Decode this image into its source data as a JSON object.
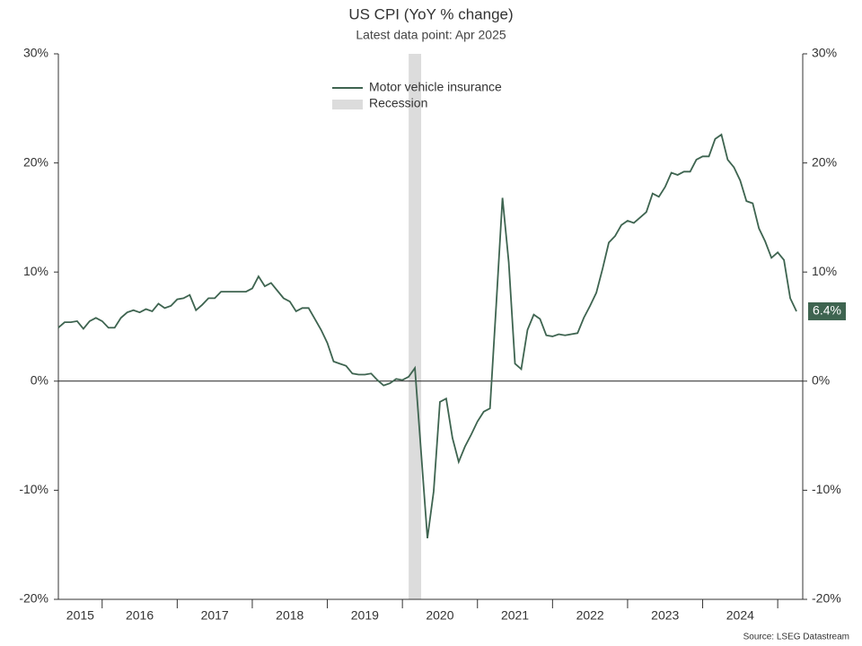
{
  "chart_data": {
    "type": "line",
    "title": "US CPI (YoY % change)",
    "subtitle": "Latest data point: Apr 2025",
    "source": "Source: LSEG Datastream",
    "x": [
      "2015-06",
      "2015-07",
      "2015-08",
      "2015-09",
      "2015-10",
      "2015-11",
      "2015-12",
      "2016-01",
      "2016-02",
      "2016-03",
      "2016-04",
      "2016-05",
      "2016-06",
      "2016-07",
      "2016-08",
      "2016-09",
      "2016-10",
      "2016-11",
      "2016-12",
      "2017-01",
      "2017-02",
      "2017-03",
      "2017-04",
      "2017-05",
      "2017-06",
      "2017-07",
      "2017-08",
      "2017-09",
      "2017-10",
      "2017-11",
      "2017-12",
      "2018-01",
      "2018-02",
      "2018-03",
      "2018-04",
      "2018-05",
      "2018-06",
      "2018-07",
      "2018-08",
      "2018-09",
      "2018-10",
      "2018-11",
      "2018-12",
      "2019-01",
      "2019-02",
      "2019-03",
      "2019-04",
      "2019-05",
      "2019-06",
      "2019-07",
      "2019-08",
      "2019-09",
      "2019-10",
      "2019-11",
      "2019-12",
      "2020-01",
      "2020-02",
      "2020-03",
      "2020-04",
      "2020-05",
      "2020-06",
      "2020-07",
      "2020-08",
      "2020-09",
      "2020-10",
      "2020-11",
      "2020-12",
      "2021-01",
      "2021-02",
      "2021-03",
      "2021-04",
      "2021-05",
      "2021-06",
      "2021-07",
      "2021-08",
      "2021-09",
      "2021-10",
      "2021-11",
      "2021-12",
      "2022-01",
      "2022-02",
      "2022-03",
      "2022-04",
      "2022-05",
      "2022-06",
      "2022-07",
      "2022-08",
      "2022-09",
      "2022-10",
      "2022-11",
      "2022-12",
      "2023-01",
      "2023-02",
      "2023-03",
      "2023-04",
      "2023-05",
      "2023-06",
      "2023-07",
      "2023-08",
      "2023-09",
      "2023-10",
      "2023-11",
      "2023-12",
      "2024-01",
      "2024-02",
      "2024-03",
      "2024-04",
      "2024-05",
      "2024-06",
      "2024-07",
      "2024-08",
      "2024-09",
      "2024-10",
      "2024-11",
      "2024-12",
      "2025-01",
      "2025-02",
      "2025-03",
      "2025-04"
    ],
    "series": [
      {
        "name": "Motor vehicle insurance",
        "color": "#3e6450",
        "values": [
          4.9,
          5.4,
          5.4,
          5.5,
          4.8,
          5.5,
          5.8,
          5.5,
          4.9,
          4.9,
          5.8,
          6.3,
          6.5,
          6.3,
          6.6,
          6.4,
          7.1,
          6.7,
          6.9,
          7.5,
          7.6,
          7.9,
          6.5,
          7.0,
          7.6,
          7.6,
          8.2,
          8.2,
          8.2,
          8.2,
          8.2,
          8.5,
          9.6,
          8.7,
          9.0,
          8.3,
          7.6,
          7.3,
          6.4,
          6.7,
          6.7,
          5.7,
          4.7,
          3.5,
          1.8,
          1.6,
          1.4,
          0.7,
          0.6,
          0.6,
          0.7,
          0.1,
          -0.4,
          -0.2,
          0.2,
          0.1,
          0.4,
          1.2,
          -6.6,
          -14.4,
          -10.1,
          -1.9,
          -1.6,
          -5.2,
          -7.4,
          -6.0,
          -4.9,
          -3.7,
          -2.8,
          -2.5,
          7.0,
          16.8,
          10.9,
          1.6,
          1.1,
          4.7,
          6.1,
          5.7,
          4.2,
          4.1,
          4.3,
          4.2,
          4.3,
          4.4,
          5.8,
          6.9,
          8.1,
          10.3,
          12.7,
          13.3,
          14.3,
          14.7,
          14.5,
          15.0,
          15.5,
          17.2,
          16.9,
          17.8,
          19.1,
          18.9,
          19.2,
          19.2,
          20.3,
          20.6,
          20.6,
          22.2,
          22.6,
          20.3,
          19.6,
          18.4,
          16.5,
          16.3,
          14.0,
          12.8,
          11.3,
          11.8,
          11.1,
          7.6,
          6.4
        ]
      }
    ],
    "end_label": "6.4%",
    "recession": {
      "name": "Recession",
      "start": "2020-02",
      "end": "2020-04",
      "color": "#dcdcdc"
    },
    "xlim": [
      "2015-06",
      "2025-05"
    ],
    "xticks": [
      "2016-01",
      "2017-01",
      "2018-01",
      "2019-01",
      "2020-01",
      "2021-01",
      "2022-01",
      "2023-01",
      "2024-01",
      "2025-01"
    ],
    "year_labels": [
      2015,
      2016,
      2017,
      2018,
      2019,
      2020,
      2021,
      2022,
      2023,
      2024
    ],
    "ylim": [
      -20,
      30
    ],
    "yticks": [
      {
        "value": -20,
        "label": "-20%"
      },
      {
        "value": -10,
        "label": "-10%"
      },
      {
        "value": 0,
        "label": "0%"
      },
      {
        "value": 10,
        "label": "10%"
      },
      {
        "value": 20,
        "label": "20%"
      },
      {
        "value": 30,
        "label": "30%"
      }
    ],
    "y2lim": [
      -20,
      30
    ],
    "y2ticks": [
      {
        "value": -20,
        "label": "-20%"
      },
      {
        "value": -10,
        "label": "-10%"
      },
      {
        "value": 0,
        "label": "0%"
      },
      {
        "value": 10,
        "label": "10%"
      },
      {
        "value": 20,
        "label": "20%"
      },
      {
        "value": 30,
        "label": "30%"
      }
    ]
  }
}
